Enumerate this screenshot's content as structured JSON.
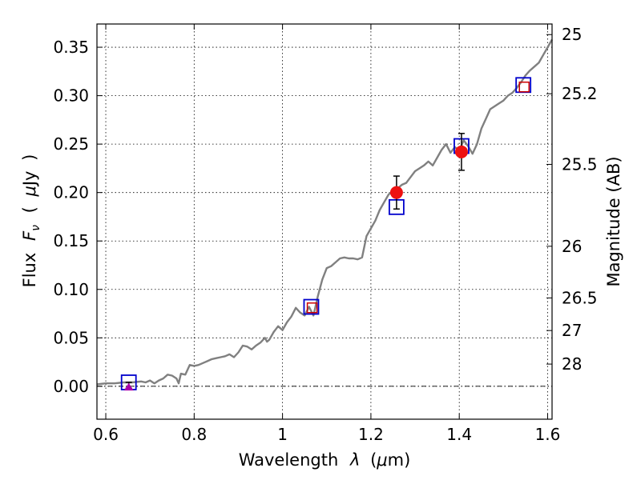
{
  "chart_data": {
    "type": "scatter",
    "xlabel_prefix": "Wavelength",
    "xlabel_symbol": "λ",
    "xlabel_unit_open": "(",
    "xlabel_unit_mu": "μ",
    "xlabel_unit_rest": "m)",
    "ylabel_prefix": "Flux",
    "ylabel_symbol": "F",
    "ylabel_subscript": "ν",
    "ylabel_unit_open": "(",
    "ylabel_unit_mu": "μ",
    "ylabel_unit_rest": "Jy",
    "ylabel_unit_close": ")",
    "y2label": "Magnitude (AB)",
    "xlim": [
      0.58,
      1.61
    ],
    "ylim": [
      -0.034,
      0.374
    ],
    "grid": true,
    "x_ticks": [
      {
        "value": 0.6,
        "label": "0.6"
      },
      {
        "value": 0.8,
        "label": "0.8"
      },
      {
        "value": 1.0,
        "label": "1"
      },
      {
        "value": 1.2,
        "label": "1.2"
      },
      {
        "value": 1.4,
        "label": "1.4"
      },
      {
        "value": 1.6,
        "label": "1.6"
      }
    ],
    "y_ticks": [
      {
        "value": 0.0,
        "label": "0.00"
      },
      {
        "value": 0.05,
        "label": "0.05"
      },
      {
        "value": 0.1,
        "label": "0.10"
      },
      {
        "value": 0.15,
        "label": "0.15"
      },
      {
        "value": 0.2,
        "label": "0.20"
      },
      {
        "value": 0.25,
        "label": "0.25"
      },
      {
        "value": 0.3,
        "label": "0.30"
      },
      {
        "value": 0.35,
        "label": "0.35"
      }
    ],
    "y2_ticks": [
      {
        "mag": 25,
        "label": "25"
      },
      {
        "mag": 25.2,
        "label": "25.2"
      },
      {
        "mag": 25.5,
        "label": "25.5"
      },
      {
        "mag": 26,
        "label": "26"
      },
      {
        "mag": 26.5,
        "label": "26.5"
      },
      {
        "mag": 27,
        "label": "27"
      },
      {
        "mag": 28,
        "label": "28"
      }
    ],
    "zero_line": 0,
    "colors": {
      "model": "#808080",
      "blue_square": "#0000cc",
      "red_square": "#cc0000",
      "observed": "#ee1111",
      "upper_limit": "#aa00aa",
      "errorbar": "#000000"
    },
    "series": [
      {
        "kind": "line",
        "color": "#808080",
        "x": [
          0.58,
          0.6,
          0.62,
          0.64,
          0.66,
          0.68,
          0.69,
          0.7,
          0.71,
          0.72,
          0.73,
          0.74,
          0.75,
          0.76,
          0.765,
          0.77,
          0.78,
          0.79,
          0.8,
          0.81,
          0.82,
          0.83,
          0.84,
          0.85,
          0.86,
          0.87,
          0.88,
          0.89,
          0.9,
          0.91,
          0.92,
          0.93,
          0.94,
          0.95,
          0.96,
          0.965,
          0.97,
          0.98,
          0.99,
          1.0,
          1.01,
          1.02,
          1.03,
          1.04,
          1.05,
          1.06,
          1.07,
          1.08,
          1.09,
          1.1,
          1.11,
          1.12,
          1.13,
          1.14,
          1.15,
          1.16,
          1.17,
          1.18,
          1.19,
          1.2,
          1.21,
          1.22,
          1.23,
          1.24,
          1.25,
          1.26,
          1.27,
          1.28,
          1.29,
          1.3,
          1.31,
          1.32,
          1.33,
          1.34,
          1.35,
          1.36,
          1.37,
          1.38,
          1.39,
          1.4,
          1.41,
          1.42,
          1.43,
          1.44,
          1.45,
          1.46,
          1.47,
          1.48,
          1.49,
          1.5,
          1.51,
          1.52,
          1.53,
          1.54,
          1.55,
          1.56,
          1.57,
          1.58,
          1.59,
          1.6,
          1.61
        ],
        "y": [
          0.002,
          0.003,
          0.003,
          0.004,
          0.004,
          0.005,
          0.004,
          0.006,
          0.003,
          0.006,
          0.008,
          0.012,
          0.011,
          0.008,
          0.003,
          0.013,
          0.012,
          0.022,
          0.021,
          0.022,
          0.024,
          0.026,
          0.028,
          0.029,
          0.03,
          0.031,
          0.033,
          0.03,
          0.035,
          0.042,
          0.041,
          0.038,
          0.042,
          0.045,
          0.05,
          0.046,
          0.048,
          0.056,
          0.062,
          0.058,
          0.066,
          0.072,
          0.081,
          0.076,
          0.073,
          0.082,
          0.073,
          0.093,
          0.11,
          0.122,
          0.124,
          0.128,
          0.132,
          0.133,
          0.132,
          0.132,
          0.131,
          0.133,
          0.155,
          0.163,
          0.171,
          0.182,
          0.19,
          0.198,
          0.202,
          0.204,
          0.208,
          0.21,
          0.216,
          0.222,
          0.225,
          0.228,
          0.232,
          0.228,
          0.236,
          0.244,
          0.25,
          0.241,
          0.247,
          0.243,
          0.254,
          0.248,
          0.24,
          0.25,
          0.266,
          0.276,
          0.286,
          0.289,
          0.292,
          0.295,
          0.3,
          0.303,
          0.308,
          0.314,
          0.321,
          0.326,
          0.33,
          0.334,
          0.342,
          0.35,
          0.358
        ]
      },
      {
        "kind": "blue_square",
        "color": "#0000cc",
        "points": [
          {
            "x": 0.652,
            "y": 0.004
          },
          {
            "x": 1.065,
            "y": 0.082
          },
          {
            "x": 1.258,
            "y": 0.185
          },
          {
            "x": 1.405,
            "y": 0.248
          },
          {
            "x": 1.545,
            "y": 0.311
          }
        ]
      },
      {
        "kind": "red_square",
        "color": "#cc0000",
        "points": [
          {
            "x": 1.067,
            "y": 0.081
          },
          {
            "x": 1.547,
            "y": 0.309
          }
        ]
      },
      {
        "kind": "observed",
        "color": "#ee1111",
        "points": [
          {
            "x": 1.258,
            "y": 0.2,
            "err": 0.017
          },
          {
            "x": 1.405,
            "y": 0.242,
            "err": 0.019
          }
        ]
      },
      {
        "kind": "upper_limit",
        "color": "#aa00aa",
        "points": [
          {
            "x": 0.652,
            "y": 0.001,
            "err": 0.003
          }
        ]
      }
    ]
  }
}
